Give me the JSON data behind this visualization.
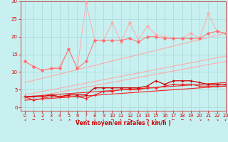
{
  "bg_color": "#c8f0f0",
  "grid_color": "#a8d8d8",
  "xlabel": "Vent moyen/en rafales ( km/h )",
  "xlim": [
    -0.5,
    23
  ],
  "ylim": [
    -1,
    30
  ],
  "yticks": [
    0,
    5,
    10,
    15,
    20,
    25,
    30
  ],
  "xticks": [
    0,
    1,
    2,
    3,
    4,
    5,
    6,
    7,
    8,
    9,
    10,
    11,
    12,
    13,
    14,
    15,
    16,
    17,
    18,
    19,
    20,
    21,
    22,
    23
  ],
  "x": [
    0,
    1,
    2,
    3,
    4,
    5,
    6,
    7,
    8,
    9,
    10,
    11,
    12,
    13,
    14,
    15,
    16,
    17,
    18,
    19,
    20,
    21,
    22,
    23
  ],
  "line_max_gust": [
    13.0,
    11.5,
    10.5,
    11.0,
    11.5,
    16.5,
    11.0,
    29.5,
    19.0,
    19.0,
    24.0,
    18.5,
    24.0,
    19.0,
    23.0,
    20.5,
    20.0,
    19.5,
    19.5,
    21.0,
    19.5,
    26.5,
    21.5,
    21.0
  ],
  "line_avg_gust": [
    13.0,
    11.5,
    10.5,
    11.0,
    11.0,
    16.5,
    11.0,
    13.0,
    19.0,
    19.0,
    19.0,
    19.0,
    19.5,
    18.5,
    20.0,
    20.0,
    19.5,
    19.5,
    19.5,
    19.5,
    19.5,
    21.0,
    21.5,
    21.0
  ],
  "line_hi_wind": [
    3.0,
    3.0,
    3.0,
    3.5,
    3.0,
    3.5,
    3.5,
    3.5,
    5.5,
    5.5,
    5.5,
    5.5,
    5.5,
    5.5,
    6.0,
    7.5,
    6.5,
    7.5,
    7.5,
    7.5,
    7.0,
    6.5,
    6.5,
    6.5
  ],
  "line_lo_wind": [
    3.0,
    2.0,
    2.5,
    3.0,
    3.0,
    3.0,
    3.0,
    2.5,
    3.5,
    4.5,
    4.5,
    5.0,
    5.0,
    5.0,
    5.5,
    5.5,
    6.0,
    6.5,
    6.5,
    6.5,
    6.0,
    6.0,
    6.0,
    6.0
  ],
  "trend_gust_high": [
    7.0,
    7.61,
    8.22,
    8.83,
    9.43,
    10.04,
    10.65,
    11.26,
    11.87,
    12.48,
    13.09,
    13.7,
    14.3,
    14.91,
    15.52,
    16.13,
    16.74,
    17.35,
    17.96,
    18.57,
    19.17,
    19.78,
    20.39,
    21.0
  ],
  "trend_gust_med": [
    3.5,
    3.98,
    4.46,
    4.93,
    5.41,
    5.89,
    6.37,
    6.85,
    7.33,
    7.8,
    8.28,
    8.76,
    9.24,
    9.72,
    10.2,
    10.67,
    11.15,
    11.63,
    12.11,
    12.59,
    13.07,
    13.54,
    14.02,
    14.5
  ],
  "trend_gust_low": [
    2.5,
    2.96,
    3.41,
    3.87,
    4.33,
    4.78,
    5.24,
    5.7,
    6.15,
    6.61,
    7.07,
    7.52,
    7.98,
    8.44,
    8.89,
    9.35,
    9.8,
    10.26,
    10.72,
    11.17,
    11.63,
    12.09,
    12.54,
    13.0
  ],
  "trend_wind_hi": [
    3.0,
    3.17,
    3.35,
    3.52,
    3.7,
    3.87,
    4.04,
    4.22,
    4.39,
    4.57,
    4.74,
    4.91,
    5.09,
    5.26,
    5.43,
    5.61,
    5.78,
    5.96,
    6.13,
    6.3,
    6.48,
    6.65,
    6.83,
    7.0
  ],
  "trend_wind_lo": [
    2.0,
    2.17,
    2.35,
    2.52,
    2.7,
    2.87,
    3.04,
    3.22,
    3.39,
    3.57,
    3.74,
    3.91,
    4.09,
    4.26,
    4.43,
    4.61,
    4.78,
    4.96,
    5.13,
    5.3,
    5.48,
    5.65,
    5.83,
    6.0
  ],
  "color_light": "#ffaaaa",
  "color_mid": "#ff7070",
  "color_dark": "#ee2222",
  "color_darkest": "#cc0000",
  "color_grid": "#a8d8d8",
  "color_tick": "#cc0000",
  "color_xlabel": "#cc0000"
}
